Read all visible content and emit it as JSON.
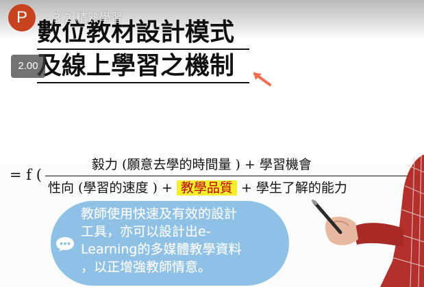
{
  "player": {
    "avatar_letter": "P",
    "video_title": "3.2 精熟學習",
    "playback_speed": "2.00",
    "accent_color": "#c9421f"
  },
  "slide": {
    "heading_line1": "數位教材設計模式",
    "heading_line2": "及線上學習之機制",
    "formula": {
      "prefix": "= f (",
      "numerator": "毅力 (願意去學的時間量     ) + 學習機會",
      "denominator_a": "性向 (學習的速度    ) + ",
      "denominator_highlight": "教學品質",
      "denominator_b": "  + 學生了解的能力"
    },
    "bubble": {
      "line1": "教師使用快速及有效的設計",
      "line2": "工具，亦可以設計出e-",
      "line3": "Learning的多媒體教學資料",
      "line4": "，以正增強教師情意。",
      "icon": "speech-bubble-icon",
      "color": "#8fc1e6"
    },
    "highlight_color": "#f5ee2a",
    "highlight_text_color": "#c00000"
  }
}
